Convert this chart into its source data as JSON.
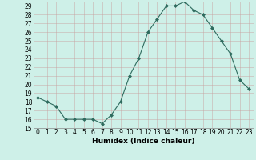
{
  "x": [
    0,
    1,
    2,
    3,
    4,
    5,
    6,
    7,
    8,
    9,
    10,
    11,
    12,
    13,
    14,
    15,
    16,
    17,
    18,
    19,
    20,
    21,
    22,
    23
  ],
  "y": [
    18.5,
    18.0,
    17.5,
    16.0,
    16.0,
    16.0,
    16.0,
    15.5,
    16.5,
    18.0,
    21.0,
    23.0,
    26.0,
    27.5,
    29.0,
    29.0,
    29.5,
    28.5,
    28.0,
    26.5,
    25.0,
    23.5,
    20.5,
    19.5
  ],
  "xlabel": "Humidex (Indice chaleur)",
  "xlim": [
    -0.5,
    23.5
  ],
  "ylim": [
    15,
    29.5
  ],
  "yticks": [
    15,
    16,
    17,
    18,
    19,
    20,
    21,
    22,
    23,
    24,
    25,
    26,
    27,
    28,
    29
  ],
  "xticks": [
    0,
    1,
    2,
    3,
    4,
    5,
    6,
    7,
    8,
    9,
    10,
    11,
    12,
    13,
    14,
    15,
    16,
    17,
    18,
    19,
    20,
    21,
    22,
    23
  ],
  "line_color": "#2e6b5e",
  "marker": "D",
  "marker_size": 2.0,
  "bg_color": "#cef0e8",
  "grid_color_major": "#b0b0b0",
  "grid_color_minor": "#e8e8e8",
  "tick_fontsize": 5.5,
  "label_fontsize": 6.5
}
